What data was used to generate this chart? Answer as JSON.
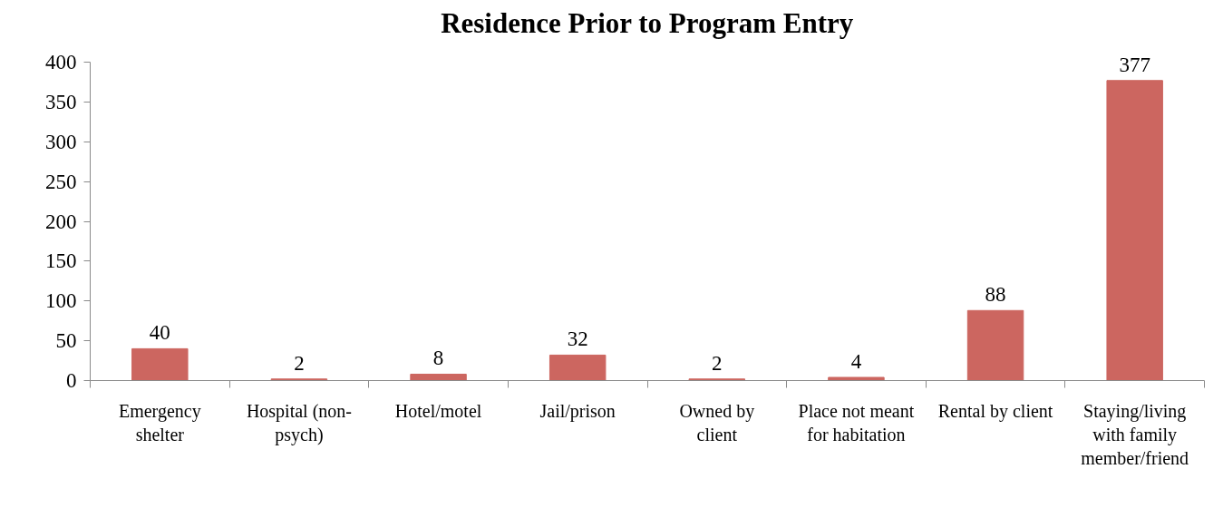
{
  "chart_data": {
    "type": "bar",
    "title": "Residence Prior to Program Entry",
    "categories": [
      "Emergency\nshelter",
      "Hospital (non-\npsych)",
      "Hotel/motel",
      "Jail/prison",
      "Owned by\nclient",
      "Place not meant\nfor habitation",
      "Rental by client",
      "Staying/living\nwith family\nmember/friend"
    ],
    "values": [
      40,
      2,
      8,
      32,
      2,
      4,
      88,
      377
    ],
    "color": "#cc6660",
    "ylim": [
      0,
      400
    ],
    "yticks": [
      0,
      50,
      100,
      150,
      200,
      250,
      300,
      350,
      400
    ],
    "data_labels": true
  }
}
